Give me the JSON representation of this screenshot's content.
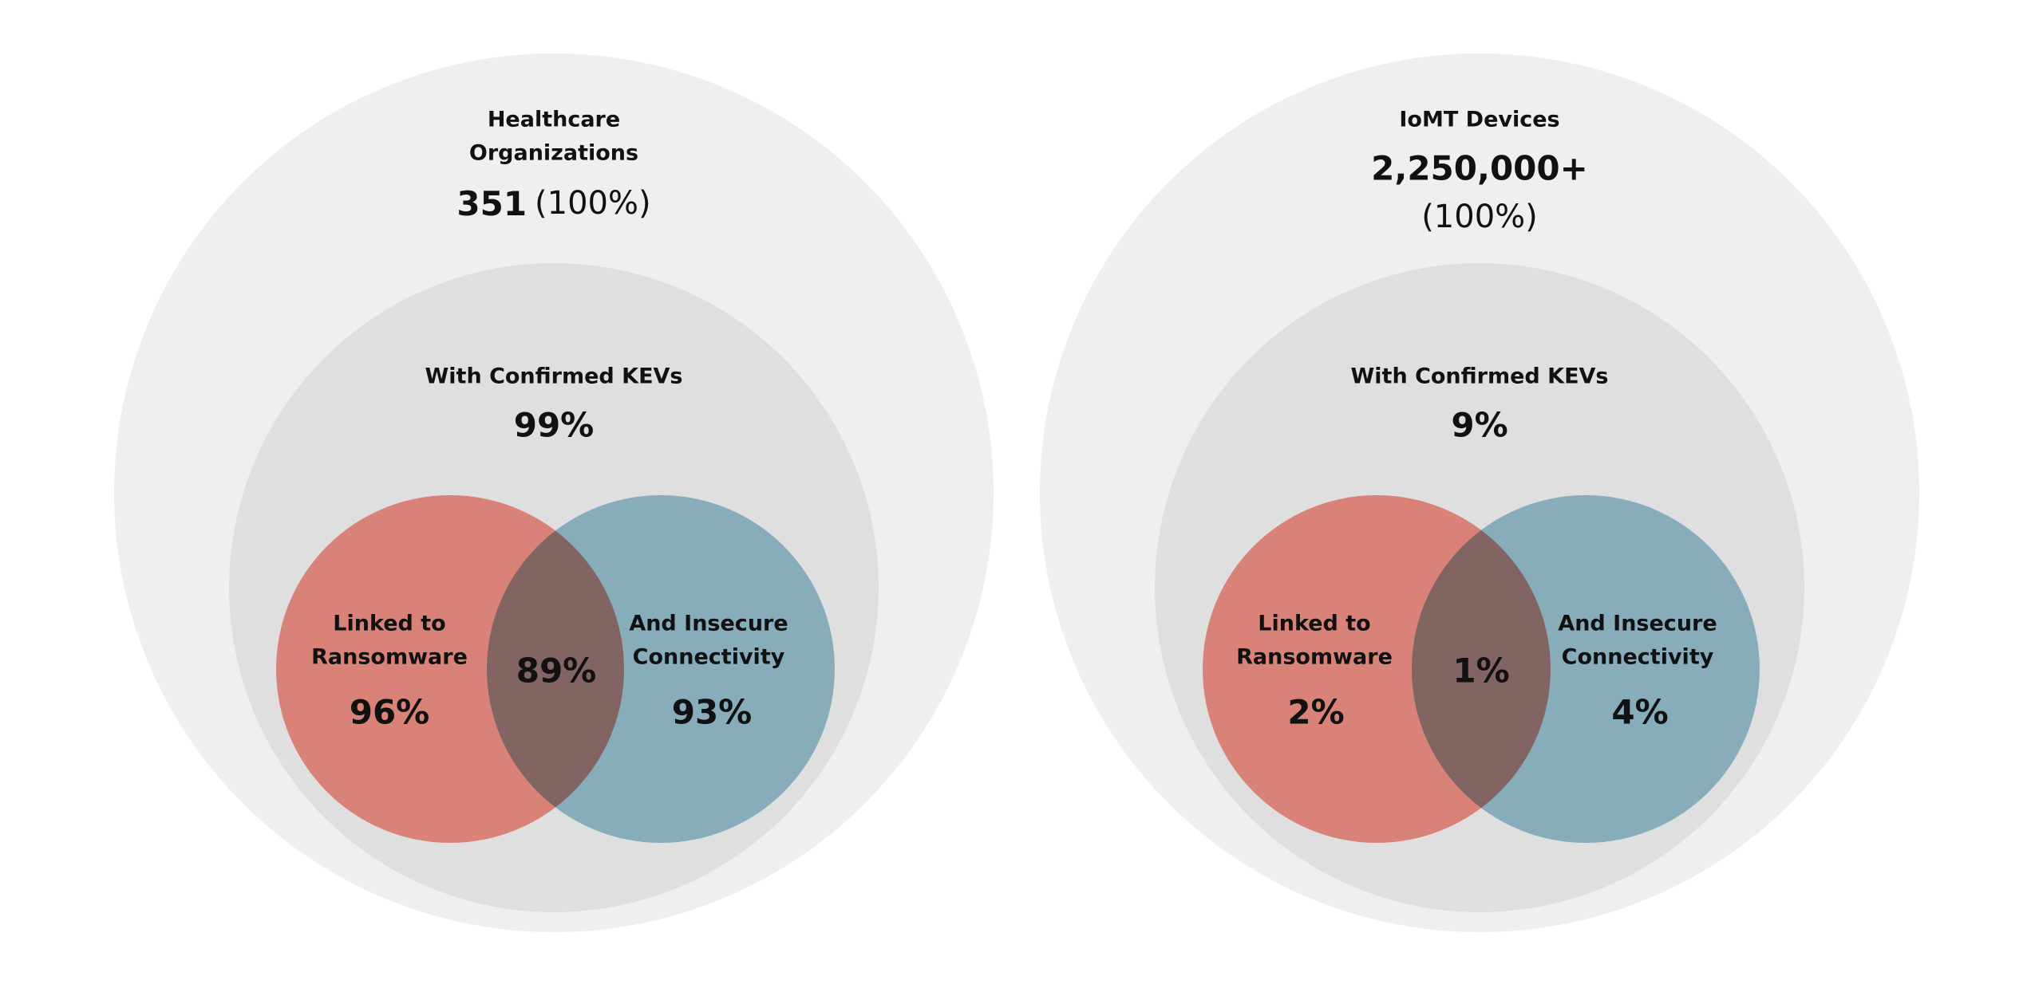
{
  "colors": {
    "outer": "#efefef",
    "inner": "#e0dfe0",
    "ransomware": "#d98278",
    "connectivity": "#87adbb",
    "overlap": "#826462"
  },
  "panels": [
    {
      "title_lines": [
        "Healthcare",
        "Organizations"
      ],
      "total_bold": "351",
      "total_light": "(100%)",
      "kev_label": "With Confirmed KEVs",
      "kev_value": "99%",
      "left_label": [
        "Linked to",
        "Ransomware"
      ],
      "left_value": "96%",
      "overlap_value": "89%",
      "right_label": [
        "And Insecure",
        "Connectivity"
      ],
      "right_value": "93%"
    },
    {
      "title_lines": [
        "IoMT Devices"
      ],
      "total_bold": "2,250,000+",
      "total_light": "(100%)",
      "kev_label": "With Confirmed KEVs",
      "kev_value": "9%",
      "left_label": [
        "Linked to",
        "Ransomware"
      ],
      "left_value": "2%",
      "overlap_value": "1%",
      "right_label": [
        "And Insecure",
        "Connectivity"
      ],
      "right_value": "4%"
    }
  ]
}
